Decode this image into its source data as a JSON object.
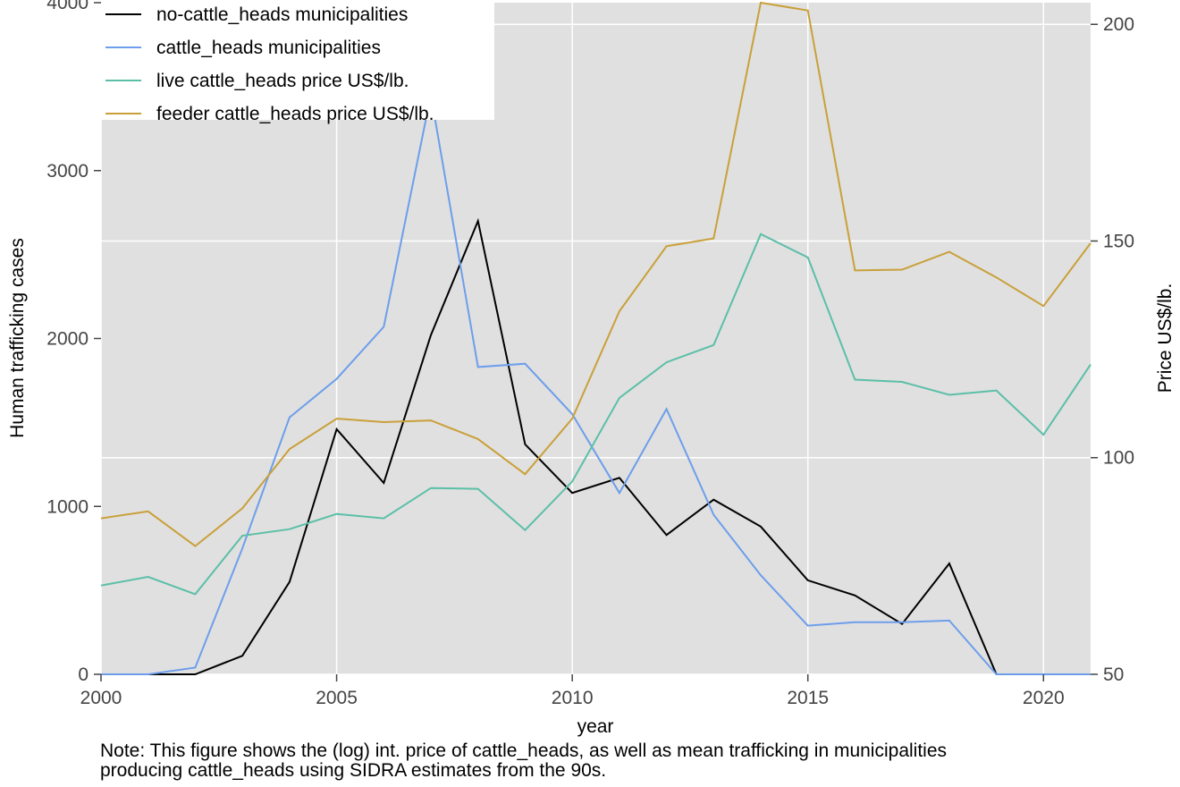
{
  "chart_data": {
    "type": "line",
    "xlabel": "year",
    "ylabel": "Human trafficking cases",
    "y2label": "Price US$/lb.",
    "xlim": [
      2000,
      2021
    ],
    "ylim": [
      0,
      4000
    ],
    "y2lim": [
      50,
      205
    ],
    "xticks": [
      2000,
      2005,
      2010,
      2015,
      2020
    ],
    "yticks": [
      0,
      1000,
      2000,
      3000,
      4000
    ],
    "y2ticks": [
      50,
      100,
      150,
      200
    ],
    "grid": true,
    "legend_position": "top-left",
    "x": [
      2000,
      2001,
      2002,
      2003,
      2004,
      2005,
      2006,
      2007,
      2008,
      2009,
      2010,
      2011,
      2012,
      2013,
      2014,
      2015,
      2016,
      2017,
      2018,
      2019,
      2020,
      2021
    ],
    "series": [
      {
        "name": "no-cattle_heads municipalities",
        "axis": "left",
        "color": "#000000",
        "values": [
          0,
          0,
          0,
          110,
          550,
          1460,
          1140,
          2020,
          2700,
          1370,
          1080,
          1170,
          830,
          1040,
          880,
          560,
          470,
          300,
          660,
          0,
          0,
          0
        ]
      },
      {
        "name": "cattle_heads municipalities",
        "axis": "left",
        "color": "#6d9eeb",
        "values": [
          0,
          0,
          40,
          750,
          1530,
          1760,
          2070,
          3450,
          1830,
          1850,
          1550,
          1080,
          1580,
          950,
          590,
          290,
          310,
          310,
          320,
          0,
          0,
          0
        ]
      },
      {
        "name": "live cattle_heads price US$/lb.",
        "axis": "right",
        "color": "#5bbfa7",
        "values": [
          70.5,
          72.5,
          68.5,
          82,
          83.5,
          87,
          86,
          93,
          92.8,
          83.3,
          94.5,
          113.8,
          122,
          126,
          151.6,
          146.2,
          118,
          117.5,
          114.5,
          115.5,
          105.3,
          121.5
        ]
      },
      {
        "name": "feeder cattle_heads price US$/lb.",
        "axis": "right",
        "color": "#c9a03a",
        "values": [
          86,
          87.6,
          79.6,
          88.3,
          102,
          109,
          108.2,
          108.6,
          104.3,
          96.2,
          109,
          133.8,
          148.8,
          150.6,
          205,
          203.2,
          143.2,
          143.4,
          147.5,
          141.6,
          135,
          149.5
        ]
      }
    ]
  },
  "note": "Note: This figure shows the (log) int. price of cattle_heads, as well as mean trafficking in municipalities\n producing cattle_heads using SIDRA estimates from the 90s."
}
